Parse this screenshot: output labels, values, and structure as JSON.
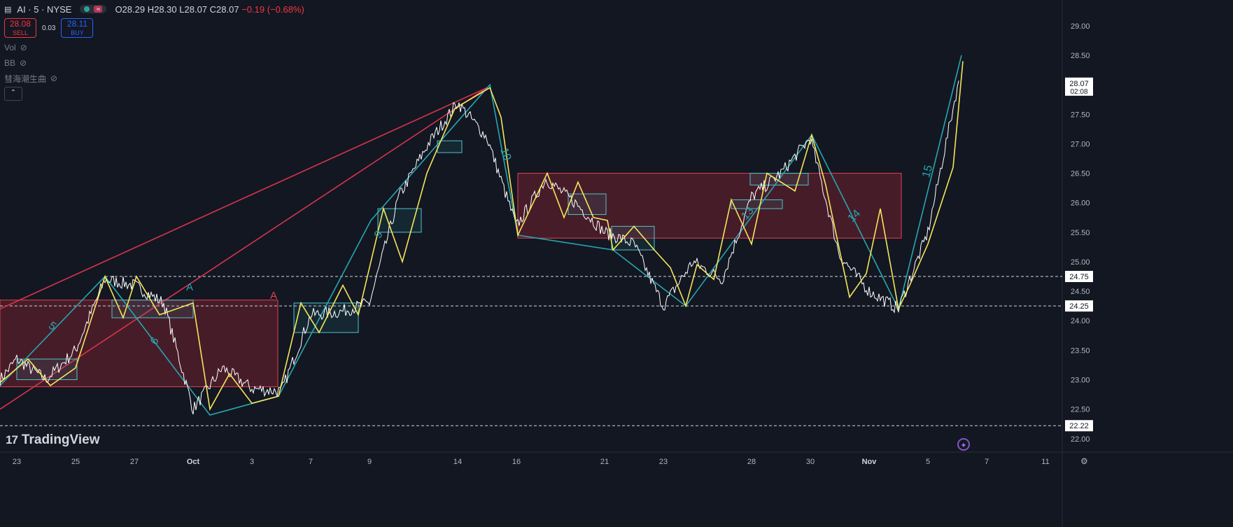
{
  "header": {
    "symbol": "AI · 5 · NYSE",
    "ohlc": {
      "open": "O28.29",
      "high": "H28.30",
      "low": "L28.07",
      "close": "C28.07",
      "change": "−0.19 (−0.68%)"
    }
  },
  "trade": {
    "sell_price": "28.08",
    "sell_label": "SELL",
    "spread": "0.03",
    "buy_price": "28.11",
    "buy_label": "BUY"
  },
  "indicators": [
    {
      "name": "Vol"
    },
    {
      "name": "BB"
    },
    {
      "name": "彗海潮生曲"
    }
  ],
  "logo_text": "TradingView",
  "colors": {
    "background": "#131722",
    "price_line": "#ffffff",
    "zigzag_yellow": "#f5e55a",
    "wave_cyan": "#26a6b0",
    "trend_red": "#d8344b",
    "zone_fill": "#5a1f2c",
    "level_dashed": "#d1d4dc"
  },
  "chart_data": {
    "type": "line",
    "title": "AI · 5 · NYSE",
    "xlabel": "",
    "ylabel": "",
    "ylim": [
      21.95,
      29.2
    ],
    "y_ticks": [
      "29.00",
      "28.50",
      "28.00",
      "27.50",
      "27.00",
      "26.50",
      "26.00",
      "25.50",
      "25.00",
      "24.50",
      "24.00",
      "23.50",
      "23.00",
      "22.50",
      "22.00"
    ],
    "x_tick_labels": [
      "23",
      "25",
      "27",
      "Oct",
      "3",
      "7",
      "9",
      "14",
      "16",
      "21",
      "23",
      "28",
      "30",
      "Nov",
      "5",
      "7",
      "11"
    ],
    "current_price": "28.07",
    "countdown": "02:08",
    "levels": [
      {
        "label": "24.75",
        "value": 24.75
      },
      {
        "label": "24.25",
        "value": 24.25
      },
      {
        "label": "22.22",
        "value": 22.22
      }
    ],
    "zones": [
      {
        "label": "A",
        "from": "Sep 22",
        "to": "Oct 4",
        "low": 22.88,
        "high": 24.35
      },
      {
        "label": "",
        "from": "Oct 16",
        "to": "Nov 3",
        "low": 25.4,
        "high": 26.5
      }
    ],
    "zone_marker": "A",
    "wave_labels": [
      "5",
      "6",
      "9",
      "10",
      "13",
      "14",
      "15"
    ],
    "trend_lines": [
      {
        "from": [
          "Sep 22",
          22.5
        ],
        "to": [
          "Oct 15",
          27.95
        ]
      },
      {
        "from": [
          "Oct 15",
          27.95
        ],
        "to": [
          "Nov 3",
          24.2
        ]
      }
    ],
    "series": [
      {
        "x": [
          "Sep 22",
          "Sep 23",
          "Sep 24",
          "Sep 25",
          "Sep 26",
          "Sep 27",
          "Sep 30",
          "Oct 1",
          "Oct 2",
          "Oct 3",
          "Oct 4",
          "Oct 7",
          "Oct 8",
          "Oct 9",
          "Oct 10",
          "Oct 11",
          "Oct 14",
          "Oct 15",
          "Oct 16",
          "Oct 17",
          "Oct 18",
          "Oct 21",
          "Oct 22",
          "Oct 23",
          "Oct 24",
          "Oct 25",
          "Oct 28",
          "Oct 29",
          "Oct 30",
          "Oct 31",
          "Nov 1",
          "Nov 4",
          "Nov 5",
          "Nov 6"
        ],
        "values": [
          23.0,
          23.35,
          23.0,
          23.5,
          24.7,
          24.6,
          24.3,
          22.5,
          23.2,
          22.85,
          22.8,
          24.1,
          24.15,
          24.3,
          26.1,
          27.0,
          27.7,
          27.1,
          25.6,
          26.4,
          26.0,
          25.5,
          25.3,
          24.25,
          25.0,
          24.7,
          26.1,
          26.5,
          27.1,
          25.1,
          24.5,
          24.2,
          25.5,
          28.07
        ]
      }
    ]
  }
}
